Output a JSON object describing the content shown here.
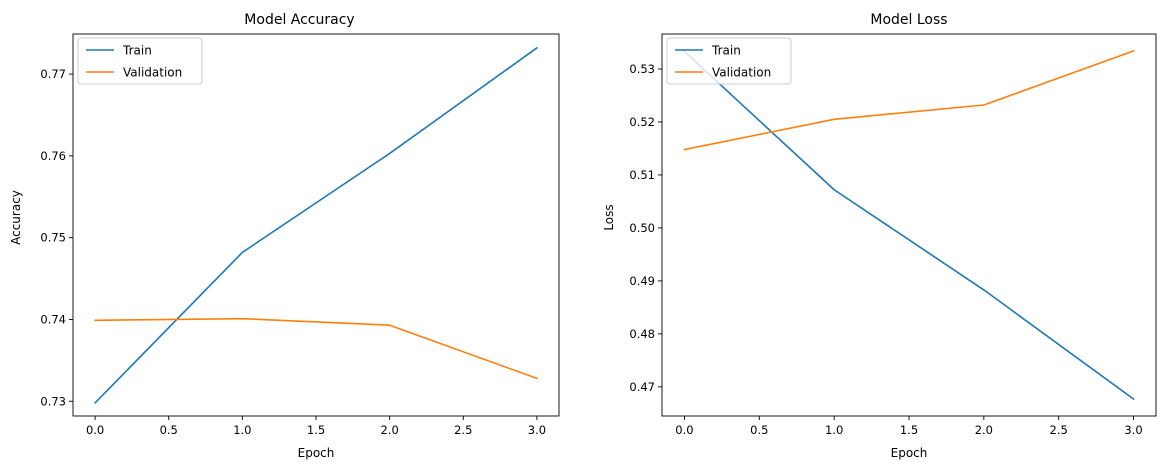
{
  "chart_data": [
    {
      "type": "line",
      "title": "Model Accuracy",
      "xlabel": "Epoch",
      "ylabel": "Accuracy",
      "x": [
        0,
        1,
        2,
        3
      ],
      "xlim": [
        -0.15,
        3.15
      ],
      "ylim": [
        0.7282,
        0.7749
      ],
      "xticks": [
        0,
        0.5,
        1,
        1.5,
        2,
        2.5,
        3
      ],
      "xtick_labels": [
        "0.0",
        "0.5",
        "1.0",
        "1.5",
        "2.0",
        "2.5",
        "3.0"
      ],
      "yticks": [
        0.73,
        0.74,
        0.75,
        0.76,
        0.77
      ],
      "ytick_labels": [
        "0.73",
        "0.74",
        "0.75",
        "0.76",
        "0.77"
      ],
      "grid": false,
      "legend_position": "upper-left",
      "series": [
        {
          "name": "Train",
          "color": "#1f77b4",
          "values": [
            0.7298,
            0.7482,
            0.7603,
            0.7732
          ]
        },
        {
          "name": "Validation",
          "color": "#ff7f0e",
          "values": [
            0.7399,
            0.7401,
            0.7393,
            0.7328
          ]
        }
      ]
    },
    {
      "type": "line",
      "title": "Model Loss",
      "xlabel": "Epoch",
      "ylabel": "Loss",
      "x": [
        0,
        1,
        2,
        3
      ],
      "xlim": [
        -0.15,
        3.15
      ],
      "ylim": [
        0.4645,
        0.5366
      ],
      "xticks": [
        0,
        0.5,
        1,
        1.5,
        2,
        2.5,
        3
      ],
      "xtick_labels": [
        "0.0",
        "0.5",
        "1.0",
        "1.5",
        "2.0",
        "2.5",
        "3.0"
      ],
      "yticks": [
        0.47,
        0.48,
        0.49,
        0.5,
        0.51,
        0.52,
        0.53
      ],
      "ytick_labels": [
        "0.47",
        "0.48",
        "0.49",
        "0.50",
        "0.51",
        "0.52",
        "0.53"
      ],
      "grid": false,
      "legend_position": "upper-left",
      "series": [
        {
          "name": "Train",
          "color": "#1f77b4",
          "values": [
            0.5333,
            0.5072,
            0.4883,
            0.4677
          ]
        },
        {
          "name": "Validation",
          "color": "#ff7f0e",
          "values": [
            0.5148,
            0.5205,
            0.5232,
            0.5334
          ]
        }
      ]
    }
  ]
}
